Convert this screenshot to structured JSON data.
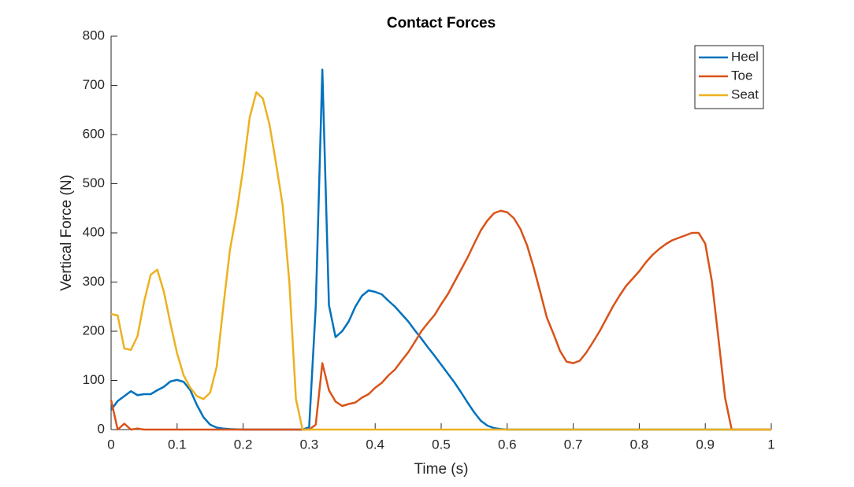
{
  "chart_data": {
    "type": "line",
    "title": "Contact Forces",
    "xlabel": "Time (s)",
    "ylabel": "Vertical Force (N)",
    "x": [
      0,
      0.01,
      0.02,
      0.03,
      0.04,
      0.05,
      0.06,
      0.07,
      0.08,
      0.09,
      0.1,
      0.11,
      0.12,
      0.13,
      0.14,
      0.15,
      0.16,
      0.17,
      0.18,
      0.19,
      0.2,
      0.21,
      0.22,
      0.23,
      0.24,
      0.25,
      0.26,
      0.27,
      0.28,
      0.29,
      0.3,
      0.31,
      0.32,
      0.33,
      0.34,
      0.35,
      0.36,
      0.37,
      0.38,
      0.39,
      0.4,
      0.41,
      0.42,
      0.43,
      0.44,
      0.45,
      0.46,
      0.47,
      0.48,
      0.49,
      0.5,
      0.51,
      0.52,
      0.53,
      0.54,
      0.55,
      0.56,
      0.57,
      0.58,
      0.59,
      0.6,
      0.61,
      0.62,
      0.63,
      0.64,
      0.65,
      0.66,
      0.67,
      0.68,
      0.69,
      0.7,
      0.71,
      0.72,
      0.73,
      0.74,
      0.75,
      0.76,
      0.77,
      0.78,
      0.79,
      0.8,
      0.81,
      0.82,
      0.83,
      0.84,
      0.85,
      0.86,
      0.87,
      0.88,
      0.89,
      0.9,
      0.91,
      0.92,
      0.93,
      0.94,
      0.95,
      0.96,
      0.97,
      0.98,
      0.99,
      1
    ],
    "series": [
      {
        "name": "Heel",
        "color": "#0072BD",
        "values": [
          40,
          58,
          68,
          78,
          70,
          72,
          72,
          80,
          87,
          98,
          101,
          97,
          80,
          50,
          25,
          10,
          4,
          2,
          1,
          0.5,
          0,
          0,
          0,
          0,
          0,
          0,
          0,
          0,
          0,
          0,
          5,
          250,
          732,
          253,
          188,
          200,
          220,
          250,
          272,
          283,
          280,
          275,
          262,
          250,
          235,
          220,
          202,
          185,
          167,
          150,
          132,
          114,
          96,
          76,
          55,
          35,
          18,
          8,
          3,
          1,
          0,
          0,
          0,
          0,
          0,
          0,
          0,
          0,
          0,
          0,
          0,
          0,
          0,
          0,
          0,
          0,
          0,
          0,
          0,
          0,
          0,
          0,
          0,
          0,
          0,
          0,
          0,
          0,
          0,
          0,
          0,
          0,
          0,
          0,
          0,
          0,
          0,
          0,
          0,
          0,
          0
        ]
      },
      {
        "name": "Toe",
        "color": "#D95319",
        "values": [
          60,
          0,
          12,
          0,
          2,
          0,
          0,
          0,
          0,
          0,
          0,
          0,
          0,
          0,
          0,
          0,
          0,
          0,
          0,
          0,
          0,
          0,
          0,
          0,
          0,
          0,
          0,
          0,
          0,
          0,
          0,
          10,
          135,
          80,
          57,
          48,
          52,
          55,
          65,
          72,
          85,
          95,
          110,
          122,
          140,
          157,
          178,
          200,
          217,
          233,
          255,
          275,
          300,
          325,
          350,
          378,
          405,
          425,
          440,
          445,
          442,
          430,
          408,
          375,
          330,
          280,
          228,
          195,
          160,
          138,
          135,
          140,
          157,
          178,
          200,
          225,
          250,
          272,
          292,
          307,
          322,
          340,
          355,
          367,
          377,
          385,
          390,
          395,
          400,
          400,
          378,
          302,
          185,
          65,
          0,
          0,
          0,
          0,
          0,
          0,
          0
        ]
      },
      {
        "name": "Seat",
        "color": "#EDB120",
        "values": [
          235,
          232,
          165,
          162,
          190,
          260,
          315,
          325,
          280,
          215,
          155,
          110,
          85,
          68,
          62,
          75,
          128,
          250,
          365,
          440,
          530,
          635,
          686,
          673,
          620,
          540,
          455,
          300,
          62,
          0,
          0,
          0,
          0,
          0,
          0,
          0,
          0,
          0,
          0,
          0,
          0,
          0,
          0,
          0,
          0,
          0,
          0,
          0,
          0,
          0,
          0,
          0,
          0,
          0,
          0,
          0,
          0,
          0,
          0,
          0,
          0,
          0,
          0,
          0,
          0,
          0,
          0,
          0,
          0,
          0,
          0,
          0,
          0,
          0,
          0,
          0,
          0,
          0,
          0,
          0,
          0,
          0,
          0,
          0,
          0,
          0,
          0,
          0,
          0,
          0,
          0,
          0,
          0,
          0,
          0,
          0,
          0,
          0,
          0,
          0,
          0
        ]
      }
    ],
    "xlim": [
      0,
      1
    ],
    "xticks": [
      0,
      0.1,
      0.2,
      0.3,
      0.4,
      0.5,
      0.6,
      0.7,
      0.8,
      0.9,
      1
    ],
    "ylim": [
      0,
      800
    ],
    "yticks": [
      0,
      100,
      200,
      300,
      400,
      500,
      600,
      700,
      800
    ],
    "legend": "top-right"
  }
}
